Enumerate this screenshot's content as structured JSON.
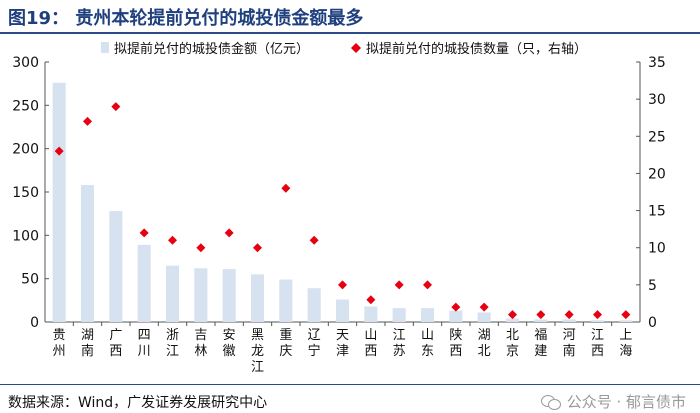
{
  "header": {
    "title": "图19：  贵州本轮提前兑付的城投债金额最多"
  },
  "footer": {
    "source": "数据来源：Wind，广发证券发展研究中心",
    "watermark": "公众号 · 郁言债市"
  },
  "colors": {
    "bar": "#d6e2f0",
    "marker": "#e60012",
    "axis": "#555555",
    "title": "#1f3f7f"
  },
  "chart_data": {
    "type": "bar",
    "categories": [
      "贵州",
      "湖南",
      "广西",
      "四川",
      "浙江",
      "吉林",
      "安徽",
      "黑龙江",
      "重庆",
      "辽宁",
      "天津",
      "山西",
      "江苏",
      "山东",
      "陕西",
      "湖北",
      "北京",
      "福建",
      "河南",
      "江西",
      "上海"
    ],
    "series": [
      {
        "name": "拟提前兑付的城投债金额（亿元）",
        "type": "bar",
        "axis": "left",
        "values": [
          276,
          158,
          128,
          89,
          65,
          62,
          61,
          55,
          49,
          39,
          26,
          18,
          16,
          16,
          13,
          11,
          4,
          3,
          3,
          2,
          2
        ]
      },
      {
        "name": "拟提前兑付的城投债数量（只，右轴）",
        "type": "scatter",
        "axis": "right",
        "values": [
          23,
          27,
          29,
          12,
          11,
          10,
          12,
          10,
          18,
          11,
          5,
          3,
          5,
          5,
          2,
          2,
          1,
          1,
          1,
          1,
          1
        ]
      }
    ],
    "y_left": {
      "range": [
        0,
        300
      ],
      "ticks": [
        "0",
        "50",
        "100",
        "150",
        "200",
        "250",
        "300"
      ]
    },
    "y_right": {
      "range": [
        0,
        35
      ],
      "ticks": [
        "0",
        "5",
        "10",
        "15",
        "20",
        "25",
        "30",
        "35"
      ]
    },
    "legend": "top",
    "grid": false
  }
}
